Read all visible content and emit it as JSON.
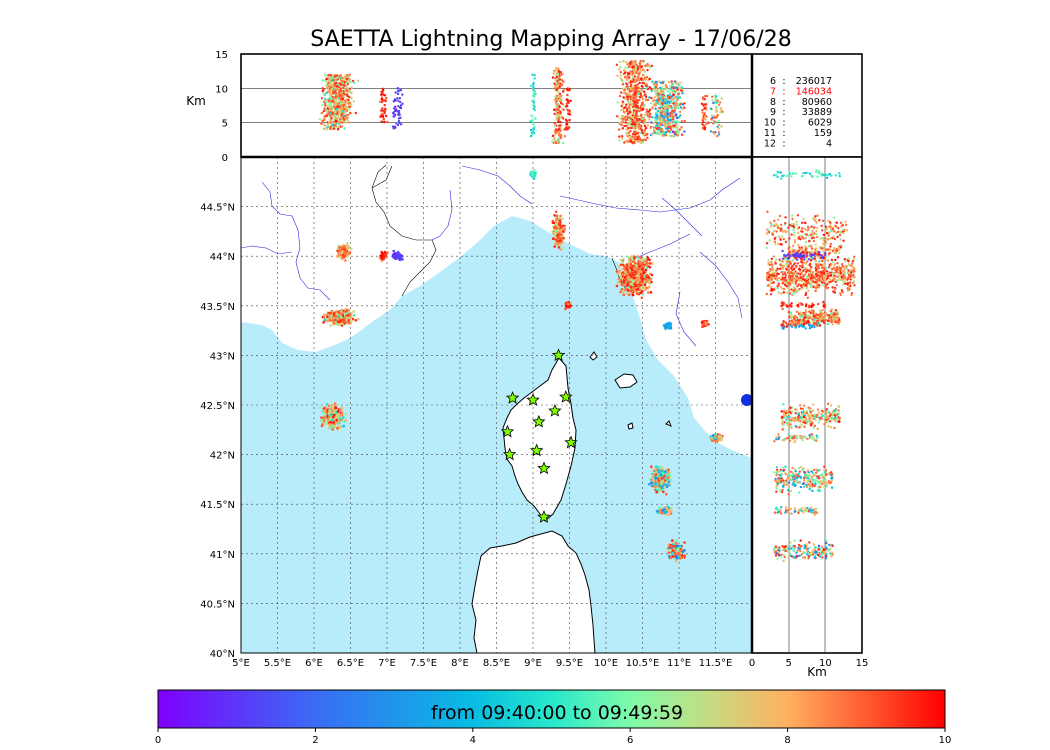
{
  "chart_data": {
    "type": "scatter",
    "title": "SAETTA Lightning Mapping Array - 17/06/28",
    "map": {
      "lon_range": [
        5.0,
        12.0
      ],
      "lat_range": [
        40.0,
        45.0
      ],
      "x_ticks": [
        "5°E",
        "5.5°E",
        "6°E",
        "6.5°E",
        "7°E",
        "7.5°E",
        "8°E",
        "8.5°E",
        "9°E",
        "9.5°E",
        "10°E",
        "10.5°E",
        "11°E",
        "11.5°E"
      ],
      "y_ticks": [
        "40°N",
        "40.5°N",
        "41°N",
        "41.5°N",
        "42°N",
        "42.5°N",
        "43°N",
        "43.5°N",
        "44°N",
        "44.5°N"
      ]
    },
    "altitude_axis": {
      "label": "Km",
      "range": [
        0,
        15
      ],
      "ticks": [
        "0",
        "5",
        "10",
        "15"
      ]
    },
    "side_axis": {
      "label": "Km",
      "ticks": [
        "0",
        "5",
        "10",
        "15"
      ]
    },
    "stats": [
      {
        "label": "6",
        "value": "236017",
        "highlight": false
      },
      {
        "label": "7",
        "value": "146034",
        "highlight": true
      },
      {
        "label": "8",
        "value": "80960",
        "highlight": false
      },
      {
        "label": "9",
        "value": "33889",
        "highlight": false
      },
      {
        "label": "10",
        "value": "6029",
        "highlight": false
      },
      {
        "label": "11",
        "value": "159",
        "highlight": false
      },
      {
        "label": "12",
        "value": "4",
        "highlight": false
      }
    ],
    "stations": [
      {
        "lon": 9.35,
        "lat": 43.0
      },
      {
        "lon": 8.72,
        "lat": 42.57
      },
      {
        "lon": 9.0,
        "lat": 42.55
      },
      {
        "lon": 9.45,
        "lat": 42.58
      },
      {
        "lon": 9.3,
        "lat": 42.44
      },
      {
        "lon": 9.08,
        "lat": 42.33
      },
      {
        "lon": 8.65,
        "lat": 42.23
      },
      {
        "lon": 9.52,
        "lat": 42.12
      },
      {
        "lon": 8.68,
        "lat": 42.0
      },
      {
        "lon": 9.05,
        "lat": 42.04
      },
      {
        "lon": 9.15,
        "lat": 41.86
      },
      {
        "lon": 9.15,
        "lat": 41.37
      }
    ],
    "clusters": [
      {
        "lon": 6.4,
        "lat": 44.05,
        "rx": 0.12,
        "ry": 0.1,
        "zlo": 5,
        "zhi": 12,
        "cmin": 5.5,
        "cmax": 9.5
      },
      {
        "lon": 6.95,
        "lat": 44.0,
        "rx": 0.07,
        "ry": 0.06,
        "zlo": 5,
        "zhi": 10,
        "cmin": 8,
        "cmax": 10
      },
      {
        "lon": 7.15,
        "lat": 44.0,
        "rx": 0.09,
        "ry": 0.06,
        "zlo": 4,
        "zhi": 10,
        "cmin": 0.3,
        "cmax": 1.5
      },
      {
        "lon": 6.35,
        "lat": 43.38,
        "rx": 0.28,
        "ry": 0.1,
        "zlo": 5,
        "zhi": 12,
        "cmin": 4.5,
        "cmax": 9.8
      },
      {
        "lon": 6.25,
        "lat": 42.38,
        "rx": 0.2,
        "ry": 0.15,
        "zlo": 4,
        "zhi": 12,
        "cmin": 3,
        "cmax": 9.9
      },
      {
        "lon": 9.35,
        "lat": 44.25,
        "rx": 0.1,
        "ry": 0.22,
        "zlo": 2,
        "zhi": 13,
        "cmin": 5,
        "cmax": 9.8
      },
      {
        "lon": 9.0,
        "lat": 44.82,
        "rx": 0.05,
        "ry": 0.06,
        "zlo": 3,
        "zhi": 12,
        "cmin": 3,
        "cmax": 6
      },
      {
        "lon": 9.48,
        "lat": 43.5,
        "rx": 0.05,
        "ry": 0.05,
        "zlo": 4,
        "zhi": 10,
        "cmin": 8,
        "cmax": 10
      },
      {
        "lon": 10.4,
        "lat": 43.8,
        "rx": 0.28,
        "ry": 0.25,
        "zlo": 2,
        "zhi": 14,
        "cmin": 5,
        "cmax": 9.9
      },
      {
        "lon": 10.85,
        "lat": 43.3,
        "rx": 0.08,
        "ry": 0.05,
        "zlo": 4,
        "zhi": 9,
        "cmin": 2,
        "cmax": 4
      },
      {
        "lon": 11.35,
        "lat": 43.32,
        "rx": 0.06,
        "ry": 0.05,
        "zlo": 4,
        "zhi": 9,
        "cmin": 7,
        "cmax": 9.9
      },
      {
        "lon": 11.5,
        "lat": 42.17,
        "rx": 0.12,
        "ry": 0.05,
        "zlo": 3,
        "zhi": 9,
        "cmin": 1,
        "cmax": 9
      },
      {
        "lon": 10.75,
        "lat": 41.75,
        "rx": 0.18,
        "ry": 0.16,
        "zlo": 3,
        "zhi": 11,
        "cmin": 0.5,
        "cmax": 9.5
      },
      {
        "lon": 10.8,
        "lat": 41.43,
        "rx": 0.14,
        "ry": 0.05,
        "zlo": 3,
        "zhi": 9,
        "cmin": 1,
        "cmax": 9.5
      },
      {
        "lon": 10.95,
        "lat": 41.03,
        "rx": 0.15,
        "ry": 0.13,
        "zlo": 3,
        "zhi": 11,
        "cmin": 0.5,
        "cmax": 9.8
      }
    ],
    "colorbar": {
      "label": "from 09:40:00 to 09:49:59",
      "range": [
        0,
        10
      ],
      "ticks": [
        "0",
        "2",
        "4",
        "6",
        "8",
        "10"
      ]
    }
  }
}
